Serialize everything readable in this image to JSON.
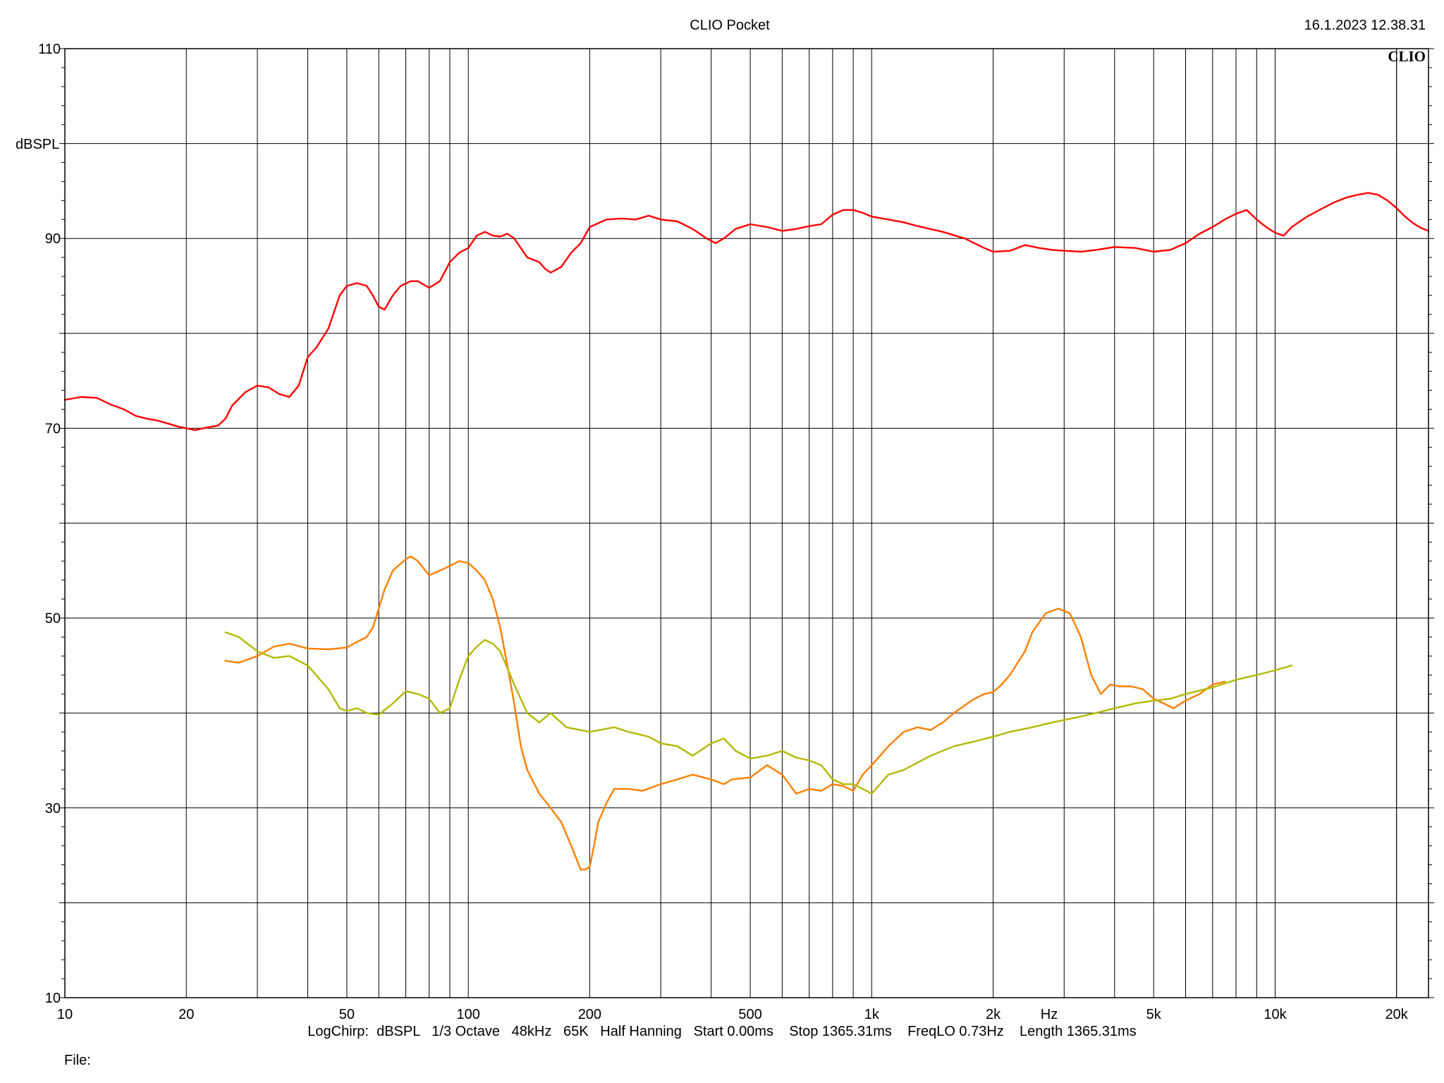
{
  "header": {
    "title": "CLIO Pocket",
    "timestamp": "16.1.2023 12.38.31"
  },
  "logo": "CLIO",
  "footer": {
    "info": "LogChirp:  dBSPL   1/3 Octave   48kHz   65K   Half Hanning   Start 0.00ms    Stop 1365.31ms    FreqLO 0.73Hz    Length 1365.31ms",
    "file_label": "File:"
  },
  "chart_data": {
    "type": "line",
    "ylabel": "dBSPL",
    "xlabel": "Hz",
    "x_scale": "log",
    "xlim": [
      10,
      24000
    ],
    "ylim": [
      10,
      110
    ],
    "grid": true,
    "x_ticks": [
      {
        "value": 10,
        "label": "10"
      },
      {
        "value": 20,
        "label": "20"
      },
      {
        "value": 50,
        "label": "50"
      },
      {
        "value": 100,
        "label": "100"
      },
      {
        "value": 200,
        "label": "200"
      },
      {
        "value": 500,
        "label": "500"
      },
      {
        "value": 1000,
        "label": "1k"
      },
      {
        "value": 2000,
        "label": "2k"
      },
      {
        "value": 5000,
        "label": "5k"
      },
      {
        "value": 10000,
        "label": "10k"
      },
      {
        "value": 20000,
        "label": "20k"
      }
    ],
    "y_ticks": [
      {
        "value": 10,
        "label": "10"
      },
      {
        "value": 30,
        "label": "30"
      },
      {
        "value": 50,
        "label": "50"
      },
      {
        "value": 70,
        "label": "70"
      },
      {
        "value": 90,
        "label": "90"
      },
      {
        "value": 110,
        "label": "110"
      }
    ],
    "series": [
      {
        "color": "#ff0000",
        "x": [
          10,
          11,
          12,
          13,
          14,
          15,
          16,
          17,
          18,
          19,
          20,
          21,
          22,
          24,
          25,
          26,
          28,
          30,
          32,
          34,
          36,
          38,
          40,
          42,
          45,
          48,
          50,
          53,
          56,
          58,
          60,
          62,
          65,
          68,
          72,
          75,
          80,
          85,
          90,
          95,
          100,
          105,
          110,
          115,
          120,
          125,
          130,
          140,
          150,
          155,
          160,
          170,
          180,
          190,
          200,
          220,
          240,
          260,
          280,
          300,
          330,
          360,
          390,
          410,
          430,
          460,
          500,
          550,
          600,
          650,
          700,
          750,
          800,
          850,
          900,
          950,
          1000,
          1100,
          1200,
          1300,
          1500,
          1700,
          1900,
          2000,
          2200,
          2400,
          2600,
          2800,
          3000,
          3300,
          3600,
          4000,
          4500,
          5000,
          5500,
          6000,
          6500,
          7000,
          7500,
          8000,
          8500,
          9000,
          9500,
          10000,
          10500,
          11000,
          12000,
          13000,
          14000,
          15000,
          16000,
          17000,
          18000,
          19000,
          20000,
          21000,
          22000,
          23000,
          24000
        ],
        "y": [
          73.0,
          73.3,
          73.2,
          72.5,
          72.0,
          71.3,
          71.0,
          70.8,
          70.5,
          70.2,
          70.0,
          69.8,
          70.0,
          70.3,
          71.0,
          72.4,
          73.8,
          74.5,
          74.3,
          73.6,
          73.3,
          74.5,
          77.5,
          78.5,
          80.5,
          84.0,
          85.0,
          85.3,
          85.0,
          84.0,
          82.8,
          82.5,
          84.0,
          85.0,
          85.5,
          85.5,
          84.8,
          85.5,
          87.5,
          88.5,
          89.0,
          90.3,
          90.7,
          90.3,
          90.2,
          90.5,
          90.0,
          88.0,
          87.5,
          86.8,
          86.4,
          87.0,
          88.5,
          89.5,
          91.2,
          92.0,
          92.1,
          92.0,
          92.4,
          92.0,
          91.8,
          91.0,
          90.0,
          89.5,
          90.0,
          91.0,
          91.5,
          91.2,
          90.8,
          91.0,
          91.3,
          91.5,
          92.5,
          93.0,
          93.0,
          92.7,
          92.3,
          92.0,
          91.7,
          91.3,
          90.7,
          90.0,
          89.0,
          88.6,
          88.7,
          89.3,
          89.0,
          88.8,
          88.7,
          88.6,
          88.8,
          89.1,
          89.0,
          88.6,
          88.8,
          89.5,
          90.5,
          91.2,
          92.0,
          92.6,
          93.0,
          92.0,
          91.2,
          90.6,
          90.3,
          91.2,
          92.3,
          93.1,
          93.8,
          94.3,
          94.6,
          94.8,
          94.6,
          94.0,
          93.2,
          92.3,
          91.6,
          91.1,
          90.8
        ]
      },
      {
        "color": "#ff7f00",
        "x": [
          25,
          27,
          30,
          33,
          36,
          40,
          45,
          50,
          53,
          56,
          58,
          60,
          62,
          65,
          70,
          72,
          75,
          80,
          85,
          90,
          95,
          100,
          105,
          110,
          115,
          120,
          125,
          130,
          135,
          140,
          150,
          160,
          170,
          180,
          190,
          195,
          200,
          205,
          210,
          220,
          230,
          250,
          270,
          300,
          330,
          360,
          400,
          430,
          450,
          500,
          550,
          600,
          650,
          700,
          750,
          800,
          850,
          900,
          950,
          1000,
          1050,
          1100,
          1200,
          1300,
          1400,
          1500,
          1600,
          1700,
          1800,
          1900,
          2000,
          2100,
          2200,
          2400,
          2500,
          2700,
          2900,
          3100,
          3300,
          3500,
          3700,
          3900,
          4100,
          4400,
          4700,
          5000,
          5300,
          5600,
          6000,
          6500,
          7000,
          7500
        ],
        "y": [
          45.5,
          45.3,
          46.0,
          47.0,
          47.3,
          46.8,
          46.7,
          46.9,
          47.5,
          48.0,
          49.0,
          51.0,
          53.0,
          55.0,
          56.2,
          56.5,
          56.0,
          54.5,
          55.0,
          55.5,
          56.0,
          55.8,
          55.0,
          54.0,
          52.0,
          49.0,
          45.0,
          41.0,
          36.5,
          34.0,
          31.5,
          30.0,
          28.5,
          26.0,
          23.5,
          23.5,
          23.8,
          26.0,
          28.5,
          30.5,
          32.0,
          32.0,
          31.8,
          32.5,
          33.0,
          33.5,
          33.0,
          32.5,
          33.0,
          33.2,
          34.5,
          33.5,
          31.5,
          32.0,
          31.8,
          32.5,
          32.3,
          31.8,
          33.5,
          34.5,
          35.5,
          36.5,
          38.0,
          38.5,
          38.2,
          39.0,
          40.0,
          40.8,
          41.5,
          42.0,
          42.2,
          43.0,
          44.0,
          46.5,
          48.5,
          50.5,
          51.0,
          50.5,
          48.0,
          44.0,
          42.0,
          43.0,
          42.8,
          42.8,
          42.5,
          41.5,
          41.0,
          40.5,
          41.3,
          42.0,
          43.0,
          43.3
        ]
      },
      {
        "color": "#b4b800",
        "x": [
          25,
          27,
          30,
          33,
          36,
          40,
          45,
          48,
          50,
          53,
          56,
          60,
          65,
          70,
          75,
          80,
          85,
          90,
          95,
          100,
          105,
          110,
          115,
          120,
          130,
          140,
          150,
          160,
          175,
          200,
          230,
          250,
          280,
          300,
          330,
          360,
          400,
          430,
          460,
          500,
          550,
          600,
          650,
          700,
          750,
          800,
          850,
          900,
          950,
          1000,
          1100,
          1200,
          1400,
          1600,
          1800,
          2000,
          2200,
          2500,
          2800,
          3200,
          3600,
          4000,
          4500,
          5000,
          5500,
          6000,
          7000,
          8000,
          9000,
          10000,
          11000
        ],
        "y": [
          48.5,
          48.0,
          46.5,
          45.8,
          46.0,
          45.0,
          42.5,
          40.5,
          40.2,
          40.5,
          40.0,
          39.8,
          41.0,
          42.3,
          42.0,
          41.5,
          40.0,
          40.5,
          43.5,
          46.0,
          47.0,
          47.7,
          47.3,
          46.5,
          43.0,
          40.0,
          39.0,
          40.0,
          38.5,
          38.0,
          38.5,
          38.0,
          37.5,
          36.8,
          36.5,
          35.5,
          36.8,
          37.3,
          36.0,
          35.2,
          35.5,
          36.0,
          35.3,
          35.0,
          34.5,
          33.0,
          32.5,
          32.5,
          32.0,
          31.5,
          33.5,
          34.0,
          35.5,
          36.5,
          37.0,
          37.5,
          38.0,
          38.5,
          39.0,
          39.5,
          40.0,
          40.5,
          41.0,
          41.3,
          41.5,
          42.0,
          42.7,
          43.5,
          44.0,
          44.5,
          45.0
        ]
      }
    ]
  }
}
